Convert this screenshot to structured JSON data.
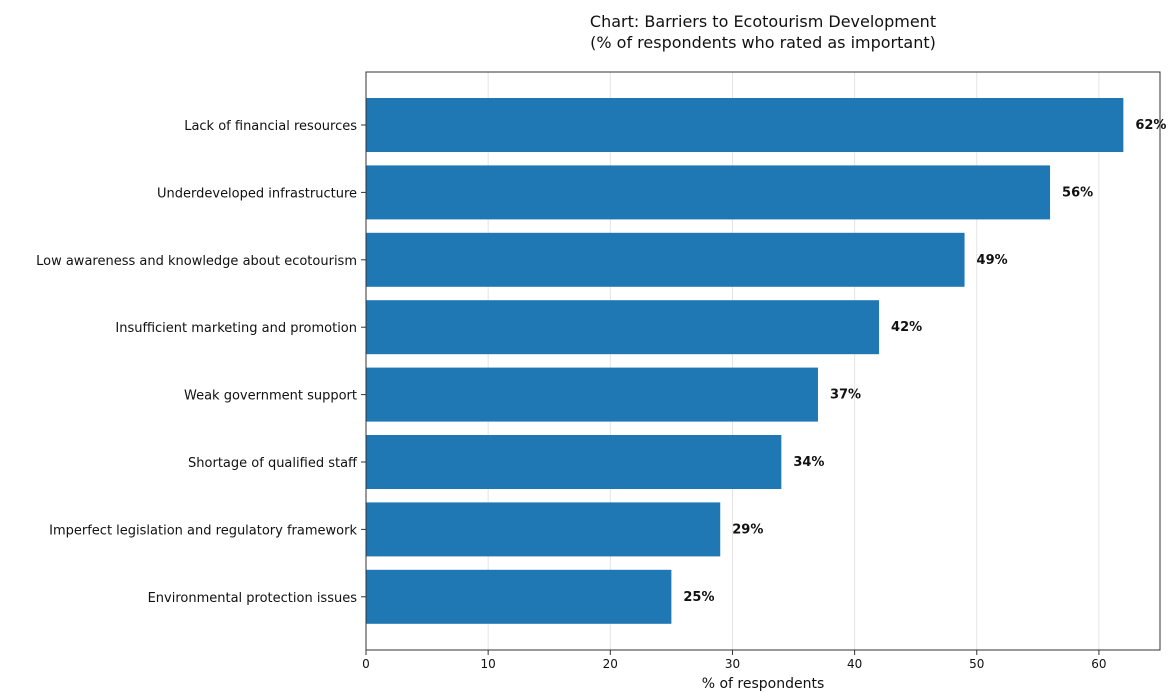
{
  "chart_data": {
    "type": "bar",
    "orientation": "horizontal",
    "title": "Chart: Barriers to Ecotourism Development",
    "subtitle": "(% of respondents who rated as important)",
    "xlabel": "% of respondents",
    "ylabel": "",
    "xlim": [
      0,
      65
    ],
    "xticks": [
      0,
      10,
      20,
      30,
      40,
      50,
      60
    ],
    "grid": true,
    "bar_color": "#1f77b4",
    "categories": [
      "Lack of financial resources",
      "Underdeveloped infrastructure",
      "Low awareness and knowledge about ecotourism",
      "Insufficient marketing and promotion",
      "Weak government support",
      "Shortage of qualified staff",
      "Imperfect legislation and regulatory framework",
      "Environmental protection issues"
    ],
    "values": [
      62,
      56,
      49,
      42,
      37,
      34,
      29,
      25
    ],
    "value_labels": [
      "62%",
      "56%",
      "49%",
      "42%",
      "37%",
      "34%",
      "29%",
      "25%"
    ]
  }
}
